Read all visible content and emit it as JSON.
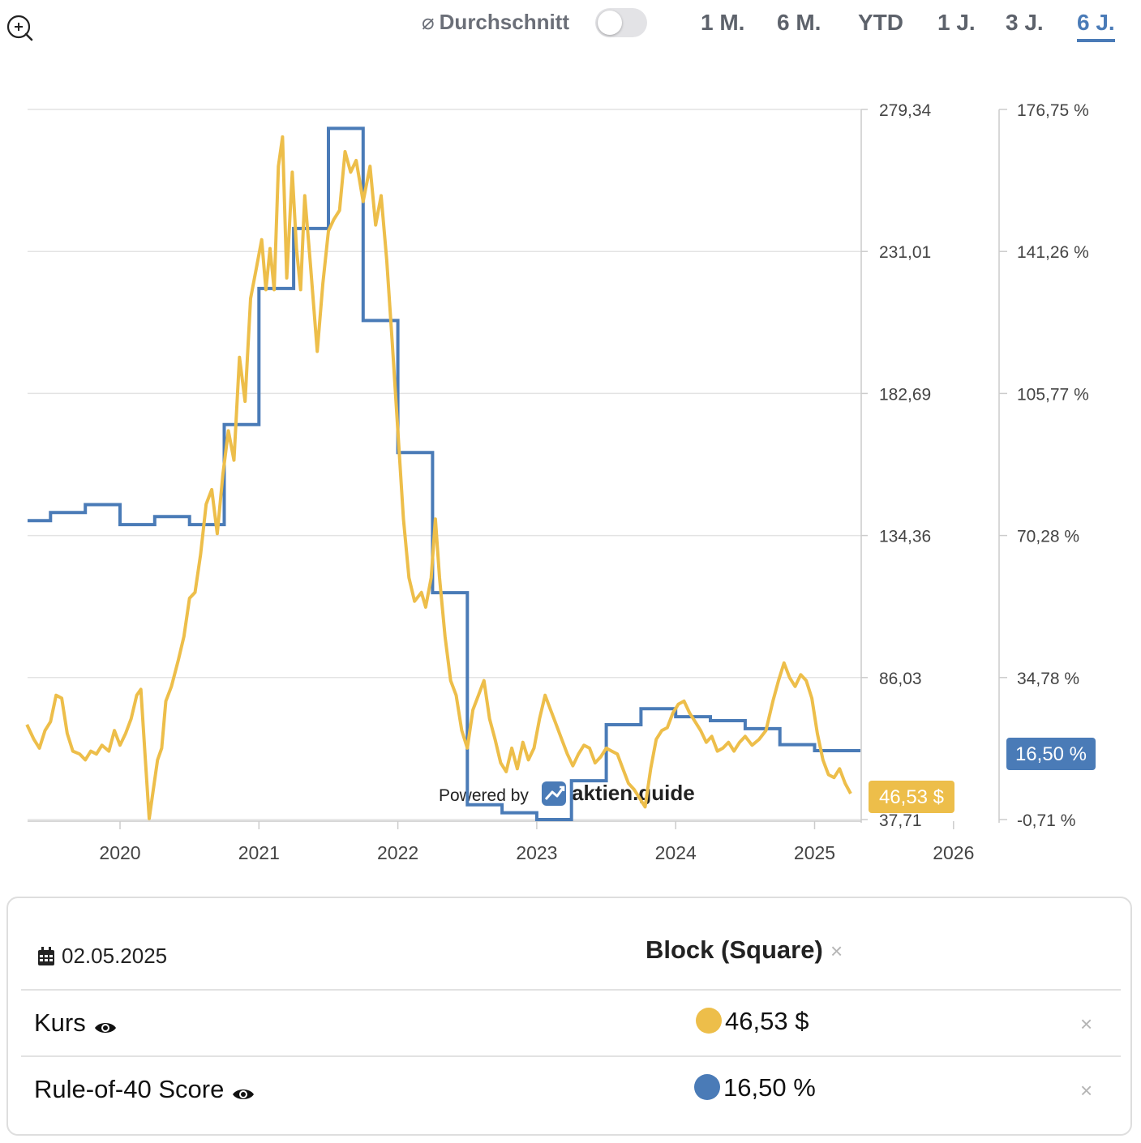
{
  "toolbar": {
    "average_label": "Durchschnitt",
    "average_symbol": "⌀",
    "average_enabled": false,
    "ranges": [
      {
        "label": "1 M.",
        "active": false
      },
      {
        "label": "6 M.",
        "active": false
      },
      {
        "label": "YTD",
        "active": false
      },
      {
        "label": "1 J.",
        "active": false
      },
      {
        "label": "3 J.",
        "active": false
      },
      {
        "label": "6 J.",
        "active": true
      }
    ]
  },
  "colors": {
    "price": "#EDBE4A",
    "score": "#4A7BB7",
    "grid": "#E3E3E3",
    "axis_text": "#444444"
  },
  "chart_data": {
    "type": "line",
    "x_ticks": [
      "2020",
      "2021",
      "2022",
      "2023",
      "2024",
      "2025",
      "2026"
    ],
    "xlim": [
      2019.33,
      2026.0
    ],
    "left_axis": {
      "ticks": [
        "279,34",
        "231,01",
        "182,69",
        "134,36",
        "86,03",
        "37,71"
      ],
      "ylim": [
        37.71,
        279.34
      ]
    },
    "right_axis": {
      "ticks": [
        "176,75 %",
        "141,26 %",
        "105,77 %",
        "70,28 %",
        "34,78 %",
        "-0,71 %"
      ],
      "ylim": [
        -0.71,
        176.75
      ]
    },
    "series": [
      {
        "name": "Kurs",
        "axis": "left",
        "end_label": "46,53 $",
        "points": [
          [
            2019.33,
            70
          ],
          [
            2019.38,
            65
          ],
          [
            2019.42,
            62
          ],
          [
            2019.46,
            68
          ],
          [
            2019.5,
            71
          ],
          [
            2019.54,
            80
          ],
          [
            2019.58,
            79
          ],
          [
            2019.62,
            67
          ],
          [
            2019.66,
            61
          ],
          [
            2019.71,
            60
          ],
          [
            2019.75,
            58
          ],
          [
            2019.79,
            61
          ],
          [
            2019.83,
            60
          ],
          [
            2019.87,
            63
          ],
          [
            2019.92,
            61
          ],
          [
            2019.96,
            68
          ],
          [
            2020.0,
            63
          ],
          [
            2020.04,
            67
          ],
          [
            2020.08,
            72
          ],
          [
            2020.12,
            80
          ],
          [
            2020.15,
            82
          ],
          [
            2020.18,
            60
          ],
          [
            2020.21,
            38
          ],
          [
            2020.24,
            48
          ],
          [
            2020.27,
            58
          ],
          [
            2020.3,
            62
          ],
          [
            2020.33,
            78
          ],
          [
            2020.37,
            83
          ],
          [
            2020.42,
            92
          ],
          [
            2020.46,
            100
          ],
          [
            2020.5,
            113
          ],
          [
            2020.54,
            115
          ],
          [
            2020.58,
            128
          ],
          [
            2020.62,
            145
          ],
          [
            2020.66,
            150
          ],
          [
            2020.7,
            135
          ],
          [
            2020.74,
            155
          ],
          [
            2020.78,
            170
          ],
          [
            2020.82,
            160
          ],
          [
            2020.86,
            195
          ],
          [
            2020.9,
            180
          ],
          [
            2020.94,
            215
          ],
          [
            2020.98,
            225
          ],
          [
            2021.02,
            235
          ],
          [
            2021.05,
            218
          ],
          [
            2021.08,
            232
          ],
          [
            2021.11,
            218
          ],
          [
            2021.14,
            260
          ],
          [
            2021.17,
            270
          ],
          [
            2021.2,
            222
          ],
          [
            2021.24,
            258
          ],
          [
            2021.27,
            232
          ],
          [
            2021.3,
            218
          ],
          [
            2021.33,
            250
          ],
          [
            2021.37,
            227
          ],
          [
            2021.42,
            197
          ],
          [
            2021.46,
            220
          ],
          [
            2021.5,
            238
          ],
          [
            2021.54,
            242
          ],
          [
            2021.58,
            245
          ],
          [
            2021.62,
            265
          ],
          [
            2021.66,
            258
          ],
          [
            2021.7,
            262
          ],
          [
            2021.75,
            248
          ],
          [
            2021.8,
            260
          ],
          [
            2021.84,
            240
          ],
          [
            2021.88,
            250
          ],
          [
            2021.92,
            228
          ],
          [
            2021.96,
            200
          ],
          [
            2022.0,
            170
          ],
          [
            2022.04,
            140
          ],
          [
            2022.08,
            120
          ],
          [
            2022.12,
            112
          ],
          [
            2022.17,
            115
          ],
          [
            2022.2,
            110
          ],
          [
            2022.24,
            120
          ],
          [
            2022.27,
            140
          ],
          [
            2022.3,
            120
          ],
          [
            2022.34,
            100
          ],
          [
            2022.38,
            85
          ],
          [
            2022.42,
            80
          ],
          [
            2022.46,
            68
          ],
          [
            2022.5,
            62
          ],
          [
            2022.54,
            75
          ],
          [
            2022.58,
            80
          ],
          [
            2022.62,
            85
          ],
          [
            2022.66,
            72
          ],
          [
            2022.7,
            65
          ],
          [
            2022.74,
            57
          ],
          [
            2022.78,
            54
          ],
          [
            2022.82,
            62
          ],
          [
            2022.86,
            55
          ],
          [
            2022.9,
            64
          ],
          [
            2022.94,
            58
          ],
          [
            2022.98,
            62
          ],
          [
            2023.02,
            72
          ],
          [
            2023.06,
            80
          ],
          [
            2023.1,
            75
          ],
          [
            2023.14,
            70
          ],
          [
            2023.18,
            65
          ],
          [
            2023.22,
            60
          ],
          [
            2023.26,
            56
          ],
          [
            2023.3,
            60
          ],
          [
            2023.34,
            63
          ],
          [
            2023.38,
            62
          ],
          [
            2023.42,
            57
          ],
          [
            2023.46,
            59
          ],
          [
            2023.5,
            62
          ],
          [
            2023.54,
            61
          ],
          [
            2023.58,
            60
          ],
          [
            2023.62,
            55
          ],
          [
            2023.66,
            50
          ],
          [
            2023.7,
            48
          ],
          [
            2023.74,
            45
          ],
          [
            2023.78,
            42
          ],
          [
            2023.82,
            55
          ],
          [
            2023.86,
            65
          ],
          [
            2023.9,
            68
          ],
          [
            2023.94,
            69
          ],
          [
            2023.98,
            74
          ],
          [
            2024.02,
            77
          ],
          [
            2024.06,
            78
          ],
          [
            2024.1,
            74
          ],
          [
            2024.14,
            71
          ],
          [
            2024.18,
            68
          ],
          [
            2024.22,
            64
          ],
          [
            2024.26,
            66
          ],
          [
            2024.3,
            61
          ],
          [
            2024.34,
            62
          ],
          [
            2024.38,
            64
          ],
          [
            2024.42,
            61
          ],
          [
            2024.46,
            64
          ],
          [
            2024.5,
            66
          ],
          [
            2024.55,
            63
          ],
          [
            2024.6,
            65
          ],
          [
            2024.65,
            68
          ],
          [
            2024.7,
            78
          ],
          [
            2024.74,
            85
          ],
          [
            2024.78,
            91
          ],
          [
            2024.82,
            86
          ],
          [
            2024.86,
            83
          ],
          [
            2024.9,
            87
          ],
          [
            2024.94,
            85
          ],
          [
            2024.98,
            79
          ],
          [
            2025.02,
            67
          ],
          [
            2025.06,
            58
          ],
          [
            2025.1,
            53
          ],
          [
            2025.14,
            52
          ],
          [
            2025.18,
            55
          ],
          [
            2025.22,
            50
          ],
          [
            2025.26,
            46.53
          ]
        ]
      },
      {
        "name": "Rule-of-40 Score",
        "axis": "right",
        "end_label": "16,50 %",
        "steps": [
          [
            2019.33,
            74
          ],
          [
            2019.5,
            76
          ],
          [
            2019.75,
            78
          ],
          [
            2020.0,
            73
          ],
          [
            2020.25,
            75
          ],
          [
            2020.5,
            73
          ],
          [
            2020.75,
            98
          ],
          [
            2021.0,
            132
          ],
          [
            2021.25,
            147
          ],
          [
            2021.5,
            172
          ],
          [
            2021.75,
            124
          ],
          [
            2022.0,
            91
          ],
          [
            2022.25,
            56
          ],
          [
            2022.5,
            3
          ],
          [
            2022.75,
            1
          ],
          [
            2023.0,
            -0.71
          ],
          [
            2023.25,
            9
          ],
          [
            2023.5,
            23
          ],
          [
            2023.75,
            27
          ],
          [
            2024.0,
            25
          ],
          [
            2024.25,
            24
          ],
          [
            2024.5,
            22
          ],
          [
            2024.75,
            18
          ],
          [
            2025.0,
            16.5
          ]
        ],
        "end_x": 2025.33
      }
    ]
  },
  "watermark": {
    "prefix": "Powered by",
    "brand": "aktien.guide"
  },
  "detail": {
    "date": "02.05.2025",
    "title": "Block (Square)",
    "rows": [
      {
        "label": "Kurs",
        "value": "46,53 $",
        "color": "#EDBE4A"
      },
      {
        "label": "Rule-of-40 Score",
        "value": "16,50 %",
        "color": "#4A7BB7"
      }
    ]
  }
}
